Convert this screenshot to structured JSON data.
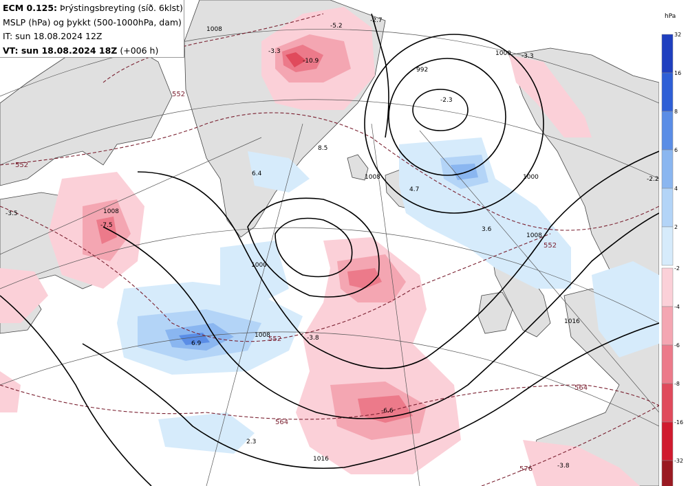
{
  "header": {
    "model": "ECM 0.125:",
    "field_desc": "Þrýstingsbreyting (síð. 6klst)",
    "line2": "MSLP (hPa) og þykkt (500-1000hPa, dam)",
    "init_time": "IT: sun 18.08.2024 12Z",
    "valid_label": "VT: sun 18.08.2024 18Z",
    "valid_offset": "(+006 h)"
  },
  "legend": {
    "unit": "hPa",
    "positive": [
      {
        "label": "32",
        "color": "#1f3fbf"
      },
      {
        "label": "16",
        "color": "#2e5fd6"
      },
      {
        "label": "8",
        "color": "#5a8de6"
      },
      {
        "label": "6",
        "color": "#8ab6f0"
      },
      {
        "label": "4",
        "color": "#b3d4f7"
      },
      {
        "label": "2",
        "color": "#d6ebfb"
      }
    ],
    "negative": [
      {
        "label": "-2",
        "color": "#fbd0d8"
      },
      {
        "label": "-4",
        "color": "#f4a6b2"
      },
      {
        "label": "-6",
        "color": "#ec7a8a"
      },
      {
        "label": "-8",
        "color": "#e04a5c"
      },
      {
        "label": "-16",
        "color": "#d01a2e"
      },
      {
        "label": "-32",
        "color": "#9a1a22"
      }
    ]
  },
  "isobar_labels": [
    "1008",
    "1000",
    "992",
    "1000",
    "1008",
    "1000",
    "1008",
    "1008",
    "1016",
    "1016",
    "1008"
  ],
  "thickness_labels": [
    "552",
    "552",
    "552",
    "552",
    "564",
    "564",
    "576"
  ],
  "change_labels": [
    "-5.2",
    "-2.7",
    "-3.3",
    "-10.9",
    "-2.3",
    "-3.3",
    "-3.5",
    "-7.5",
    "8.5",
    "6.4",
    "4.7",
    "3.6",
    "6.9",
    "-3.8",
    "-6.6",
    "2.3",
    "-2.2",
    "-3.8"
  ]
}
